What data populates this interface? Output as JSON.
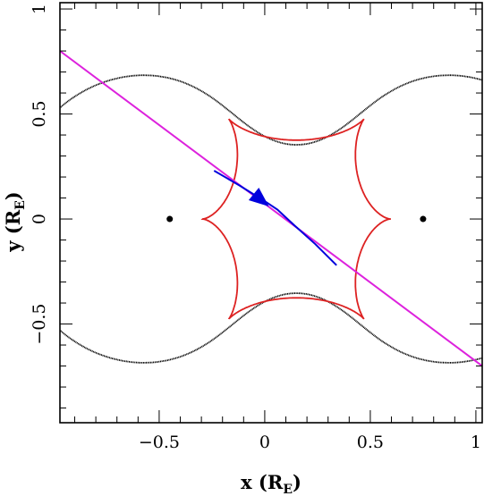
{
  "chart_data": {
    "type": "line",
    "title": "",
    "xlabel": "x (R",
    "xlabel_sub": "E",
    "xlabel_end": ")",
    "ylabel": "y (R",
    "ylabel_sub": "E",
    "ylabel_end": ")",
    "xlim": [
      -0.97,
      1.03
    ],
    "ylim": [
      -0.97,
      1.03
    ],
    "x_ticks": [
      -0.5,
      0,
      0.5,
      1
    ],
    "x_tick_labels": [
      "−0.5",
      "0",
      "0.5",
      "1"
    ],
    "y_ticks": [
      -0.5,
      0,
      0.5,
      1
    ],
    "y_tick_labels": [
      "−0.5",
      "0",
      "0.5",
      "1"
    ],
    "grid": false,
    "colors": {
      "trajectory": "#dd22dd",
      "caustic": "#dd2222",
      "critical_curve": "#000000",
      "source_track": "#0000dd",
      "lens": "#000000"
    },
    "series": [
      {
        "kind": "trajectory",
        "x": [
          -0.97,
          1.03
        ],
        "y": [
          0.8,
          -0.7
        ]
      },
      {
        "kind": "source_track",
        "x": [
          -0.24,
          -0.12,
          0.0,
          0.06,
          0.14,
          0.24,
          0.34
        ],
        "y": [
          0.23,
          0.16,
          0.085,
          0.045,
          -0.03,
          -0.12,
          -0.22
        ]
      },
      {
        "kind": "lens",
        "x": [
          -0.45,
          0.75
        ],
        "y": [
          0.0,
          0.0
        ]
      }
    ]
  }
}
